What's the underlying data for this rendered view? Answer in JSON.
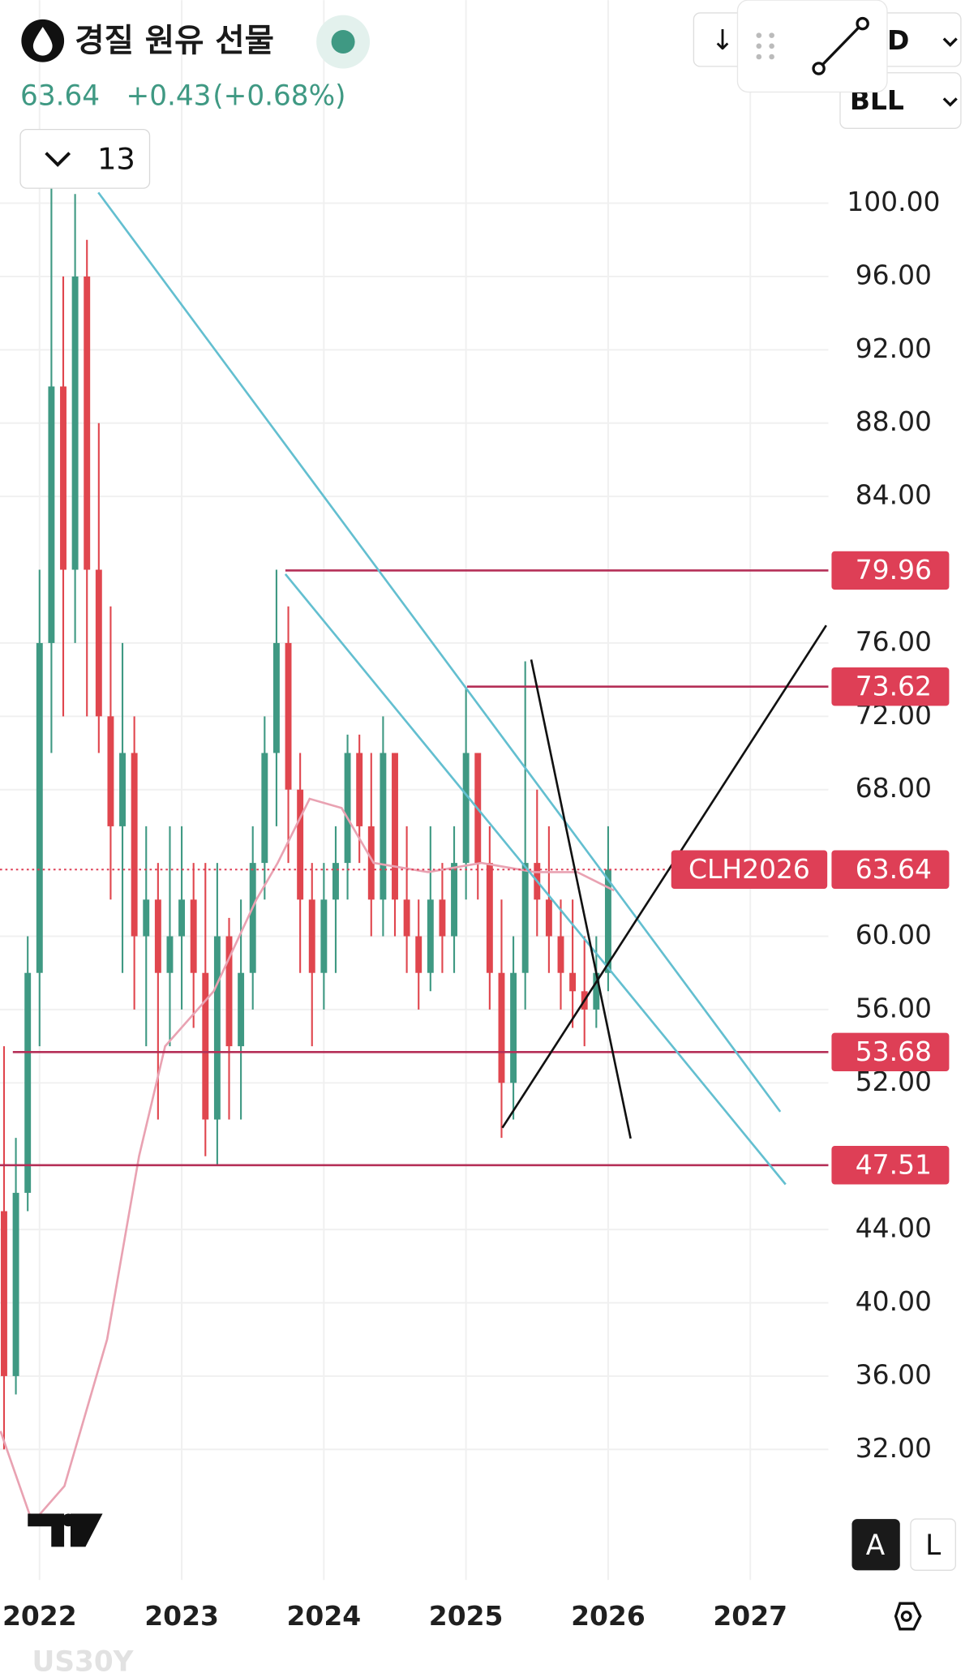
{
  "header": {
    "title": "경질 원유 선물",
    "price": "63.64",
    "change": "+0.43",
    "change_pct": "(+0.68%)",
    "interval": "13",
    "currency": "D",
    "unit": "BLL"
  },
  "chart_data": {
    "type": "candlestick",
    "categories": [
      null,
      null,
      null,
      null,
      null,
      null,
      null,
      null,
      null,
      null,
      null,
      null,
      null,
      null,
      null,
      null,
      null,
      null,
      null,
      null,
      null,
      null,
      null,
      null,
      null,
      null,
      null,
      null,
      null,
      null,
      null,
      null,
      null,
      null,
      null,
      null,
      null,
      null,
      null,
      null,
      null,
      null,
      null,
      null,
      null,
      null,
      null,
      null,
      null,
      null,
      null,
      null
    ],
    "open": [
      45,
      36,
      46,
      58,
      76,
      90,
      80,
      96,
      80,
      72,
      66,
      70,
      60,
      62,
      58,
      60,
      62,
      58,
      50,
      60,
      54,
      58,
      64,
      70,
      76,
      68,
      62,
      58,
      62,
      64,
      70,
      66,
      62,
      70,
      62,
      60,
      58,
      62,
      60,
      64,
      70,
      64,
      58,
      52,
      58,
      64,
      62,
      60,
      58,
      57,
      56,
      58
    ],
    "high": [
      54,
      49,
      60,
      80,
      101,
      96,
      100.5,
      98,
      88,
      78,
      76,
      72,
      66,
      64,
      66,
      66,
      64,
      64,
      64,
      61,
      62,
      66,
      72,
      80,
      78,
      70,
      64,
      64,
      66,
      71,
      71,
      70,
      72,
      70,
      66,
      62,
      66,
      64,
      66,
      73.6,
      70,
      66,
      62,
      60,
      75,
      68,
      66,
      62,
      62,
      60,
      60,
      66
    ],
    "low": [
      32,
      35,
      45,
      54,
      70,
      72,
      76,
      72,
      70,
      62,
      58,
      56,
      54,
      50,
      54,
      56,
      55,
      48,
      47.5,
      50,
      50,
      56,
      62,
      66,
      64,
      58,
      54,
      56,
      58,
      62,
      64,
      60,
      60,
      60,
      58,
      56,
      57,
      58,
      58,
      62,
      62,
      56,
      49,
      50,
      56,
      60,
      58,
      56,
      55,
      54,
      55,
      57
    ],
    "close": [
      36,
      46,
      58,
      76,
      90,
      80,
      96,
      80,
      72,
      66,
      70,
      60,
      62,
      58,
      60,
      62,
      58,
      50,
      60,
      54,
      58,
      64,
      70,
      76,
      68,
      62,
      58,
      62,
      64,
      70,
      66,
      62,
      70,
      62,
      60,
      58,
      62,
      60,
      64,
      70,
      64,
      58,
      52,
      58,
      64,
      62,
      60,
      58,
      57,
      56,
      58,
      63.64
    ],
    "colors": {
      "up": "#3f9983",
      "down": "#e0464e"
    },
    "moving_average": {
      "color": "#e9a2b2",
      "x": [
        -0.3,
        2.4,
        5.1,
        8.7,
        11.4,
        13.6,
        17.7,
        21.3,
        23.1,
        25.8,
        28.5,
        31.2,
        35.8,
        40.3,
        44.8,
        48.4,
        51.5
      ],
      "values": [
        33,
        28,
        30,
        38,
        48,
        54,
        57,
        62,
        64,
        67.5,
        67,
        64,
        63.5,
        64,
        63.5,
        63.5,
        62.5
      ]
    },
    "xlim": [
      -0.34,
      69.59
    ],
    "xticks": [
      {
        "value": 3,
        "label": "2022"
      },
      {
        "value": 15,
        "label": "2023"
      },
      {
        "value": 27,
        "label": "2024"
      },
      {
        "value": 39,
        "label": "2025"
      },
      {
        "value": 51,
        "label": "2026"
      },
      {
        "value": 63,
        "label": "2027"
      }
    ],
    "ylim": [
      24.88,
      111.08
    ],
    "yticks": [
      {
        "value": 32,
        "label": "32.00"
      },
      {
        "value": 36,
        "label": "36.00"
      },
      {
        "value": 40,
        "label": "40.00"
      },
      {
        "value": 44,
        "label": "44.00"
      },
      {
        "value": 52,
        "label": "52.00"
      },
      {
        "value": 56,
        "label": "56.00"
      },
      {
        "value": 60,
        "label": "60.00"
      },
      {
        "value": 68,
        "label": "68.00"
      },
      {
        "value": 72,
        "label": "72.00"
      },
      {
        "value": 76,
        "label": "76.00"
      },
      {
        "value": 84,
        "label": "84.00"
      },
      {
        "value": 88,
        "label": "88.00"
      },
      {
        "value": 92,
        "label": "92.00"
      },
      {
        "value": 96,
        "label": "96.00"
      },
      {
        "value": 100,
        "label": "100.00"
      }
    ],
    "grid": true,
    "levels": [
      79.96,
      73.62,
      53.68,
      47.51
    ],
    "level_color": "#b52f57",
    "last": {
      "symbol": "CLH2026",
      "value": 63.64,
      "color": "#de3f56"
    }
  },
  "buttons": {
    "scale_auto": "A",
    "scale_log": "L"
  },
  "watermark": "US30Y"
}
